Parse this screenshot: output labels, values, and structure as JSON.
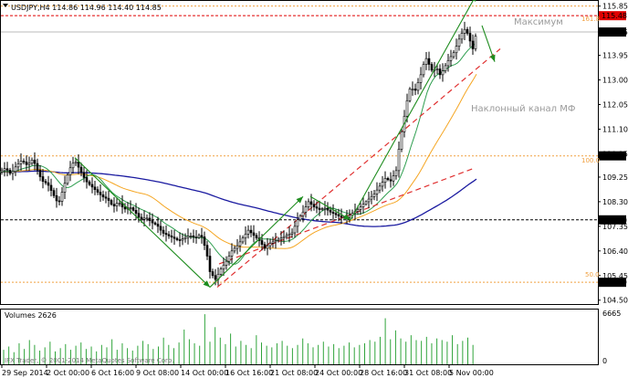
{
  "header": {
    "symbol_line": "USDJPY,H4  114.86 114.96 114.40 114.85"
  },
  "annotations": {
    "maximum": "Максимум",
    "channel": "Наклонный канал МФ"
  },
  "fib_labels": {
    "f161": "161.8",
    "f100": "100.0",
    "f50": "50.0"
  },
  "price_tags": [
    {
      "value": "115.48",
      "price": 115.48,
      "bg": "#e00000",
      "fg": "#ffffff"
    },
    {
      "value": "114.85",
      "price": 114.85,
      "bg": "#000000",
      "fg": "#ffffff"
    },
    {
      "value": "110.07",
      "price": 110.07,
      "bg": "#000000",
      "fg": "#ffffff"
    },
    {
      "value": "107.60",
      "price": 107.6,
      "bg": "#000000",
      "fg": "#ffffff"
    },
    {
      "value": "105.19",
      "price": 105.19,
      "bg": "#000000",
      "fg": "#ffffff"
    }
  ],
  "volume_panel": {
    "title": "Volumes 2626",
    "max_label": "6665",
    "min_label": "0"
  },
  "copyright": "IFX Trader, © 2001-2014 MetaQuotes Software Corp.",
  "colors": {
    "ma_blue": "#1a1aa0",
    "ma_orange": "#f5a623",
    "ma_green": "#2e9e4f",
    "channel_red": "#e03030",
    "arrow_green": "#1e8c1e",
    "volume_green": "#2fa43a",
    "fib_orange": "#f0a040",
    "red_level": "#e00000"
  },
  "chart_data": {
    "type": "candlestick",
    "symbol": "USDJPY",
    "timeframe": "H4",
    "y_ticks": [
      104.5,
      105.45,
      106.4,
      107.35,
      108.3,
      109.25,
      110.15,
      111.1,
      112.05,
      113.0,
      113.95,
      114.85,
      115.85
    ],
    "x_ticks": [
      "29 Sep 2014",
      "2 Oct 00:00",
      "6 Oct 16:00",
      "9 Oct 08:00",
      "14 Oct 00:00",
      "16 Oct 16:00",
      "21 Oct 08:00",
      "24 Oct 00:00",
      "28 Oct 16:00",
      "31 Oct 08:00",
      "5 Nov 00:00"
    ],
    "ylim": [
      104.35,
      116.05
    ],
    "horizontal_levels": [
      {
        "price": 115.85,
        "style": "dotted-orange"
      },
      {
        "price": 115.48,
        "style": "dashed-red"
      },
      {
        "price": 114.85,
        "style": "solid-gray"
      },
      {
        "price": 110.07,
        "style": "dotted-orange"
      },
      {
        "price": 107.6,
        "style": "dashed-black"
      },
      {
        "price": 105.19,
        "style": "dotted-orange"
      }
    ],
    "close_path": [
      [
        0,
        109.45
      ],
      [
        6,
        109.6
      ],
      [
        12,
        109.35
      ],
      [
        18,
        109.7
      ],
      [
        24,
        109.9
      ],
      [
        30,
        109.7
      ],
      [
        36,
        109.95
      ],
      [
        40,
        109.6
      ],
      [
        46,
        109.1
      ],
      [
        52,
        109.0
      ],
      [
        58,
        108.6
      ],
      [
        64,
        108.2
      ],
      [
        70,
        108.9
      ],
      [
        76,
        109.55
      ],
      [
        82,
        109.9
      ],
      [
        88,
        109.5
      ],
      [
        94,
        109.1
      ],
      [
        100,
        108.9
      ],
      [
        106,
        108.7
      ],
      [
        112,
        108.5
      ],
      [
        118,
        108.4
      ],
      [
        124,
        108.1
      ],
      [
        130,
        108.3
      ],
      [
        136,
        108.0
      ],
      [
        142,
        108.1
      ],
      [
        148,
        107.9
      ],
      [
        154,
        107.6
      ],
      [
        160,
        107.7
      ],
      [
        166,
        107.5
      ],
      [
        172,
        107.4
      ],
      [
        178,
        107.1
      ],
      [
        184,
        107.0
      ],
      [
        190,
        106.9
      ],
      [
        196,
        106.8
      ],
      [
        202,
        106.9
      ],
      [
        208,
        107.0
      ],
      [
        214,
        106.9
      ],
      [
        220,
        107.05
      ],
      [
        226,
        106.4
      ],
      [
        230,
        105.6
      ],
      [
        236,
        105.3
      ],
      [
        242,
        105.7
      ],
      [
        248,
        106.0
      ],
      [
        254,
        106.4
      ],
      [
        260,
        106.6
      ],
      [
        266,
        106.9
      ],
      [
        272,
        107.2
      ],
      [
        278,
        107.0
      ],
      [
        284,
        106.8
      ],
      [
        290,
        106.5
      ],
      [
        296,
        106.7
      ],
      [
        302,
        106.8
      ],
      [
        308,
        106.9
      ],
      [
        314,
        107.0
      ],
      [
        320,
        107.1
      ],
      [
        326,
        107.6
      ],
      [
        332,
        107.9
      ],
      [
        338,
        108.3
      ],
      [
        344,
        108.1
      ],
      [
        350,
        108.0
      ],
      [
        356,
        108.05
      ],
      [
        362,
        107.9
      ],
      [
        368,
        107.8
      ],
      [
        374,
        107.7
      ],
      [
        380,
        107.7
      ],
      [
        386,
        107.85
      ],
      [
        392,
        108.0
      ],
      [
        398,
        108.2
      ],
      [
        404,
        108.4
      ],
      [
        410,
        108.6
      ],
      [
        416,
        108.9
      ],
      [
        422,
        109.2
      ],
      [
        428,
        109.1
      ],
      [
        434,
        109.5
      ],
      [
        438,
        110.6
      ],
      [
        442,
        111.4
      ],
      [
        446,
        112.2
      ],
      [
        450,
        112.8
      ],
      [
        454,
        112.5
      ],
      [
        458,
        112.9
      ],
      [
        462,
        113.3
      ],
      [
        466,
        113.9
      ],
      [
        470,
        113.6
      ],
      [
        474,
        113.3
      ],
      [
        478,
        113.5
      ],
      [
        482,
        113.2
      ],
      [
        486,
        113.4
      ],
      [
        490,
        113.7
      ],
      [
        494,
        113.9
      ],
      [
        498,
        114.1
      ],
      [
        502,
        114.5
      ],
      [
        506,
        114.8
      ],
      [
        510,
        115.0
      ],
      [
        514,
        114.6
      ],
      [
        518,
        114.2
      ],
      [
        522,
        114.85
      ]
    ],
    "volumes": [
      1800,
      2200,
      1500,
      2600,
      1900,
      3000,
      2400,
      1700,
      2100,
      2800,
      1600,
      2000,
      2500,
      1800,
      2300,
      2700,
      1900,
      2200,
      1600,
      2400,
      2100,
      3100,
      1800,
      2600,
      2000,
      1700,
      2300,
      2900,
      2500,
      1900,
      2200,
      3300,
      2400,
      2000,
      2700,
      4300,
      3100,
      2600,
      2300,
      6200,
      2800,
      4600,
      3300,
      2500,
      3800,
      2200,
      2900,
      2400,
      2000,
      3600,
      2700,
      2300,
      2100,
      2600,
      2900,
      2300,
      2000,
      2400,
      3200,
      2600,
      2100,
      2400,
      2800,
      2200,
      2500,
      2000,
      2300,
      2700,
      2100,
      2400,
      2600,
      3000,
      2800,
      3400,
      5700,
      3100,
      4200,
      3200,
      2800,
      3600,
      3000,
      2900,
      3400,
      2600,
      3200,
      3000,
      2800,
      3600,
      2500,
      2900,
      3300,
      2400
    ]
  }
}
